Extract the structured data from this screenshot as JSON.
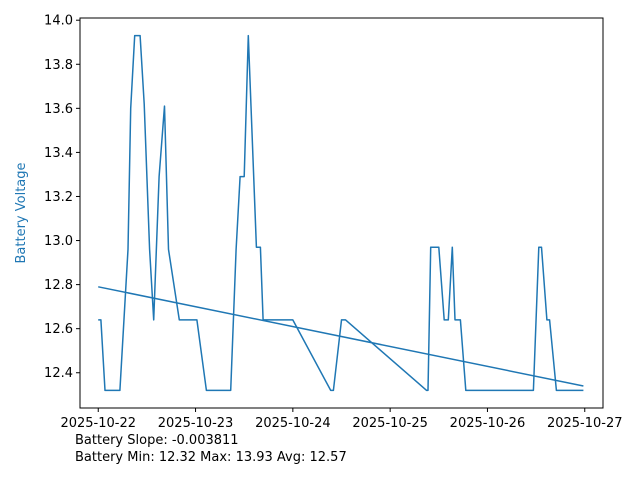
{
  "chart_data": {
    "type": "line",
    "title": "",
    "xlabel": "",
    "ylabel": "Battery Voltage",
    "xlim": [
      "2025-10-21 19:30",
      "2025-10-27 04:30"
    ],
    "ylim": [
      12.24,
      14.01
    ],
    "x_ticks": [
      "2025-10-22",
      "2025-10-23",
      "2025-10-24",
      "2025-10-25",
      "2025-10-26",
      "2025-10-27"
    ],
    "y_ticks": [
      "12.4",
      "12.6",
      "12.8",
      "13.0",
      "13.2",
      "13.4",
      "13.6",
      "13.8",
      "14.0"
    ],
    "grid": false,
    "line_color": "#1f77b4",
    "series": [
      {
        "x": [
          "2025-10-22 00:00",
          "2025-10-22 00:40",
          "2025-10-22 01:40",
          "2025-10-22 02:40",
          "2025-10-22 03:40",
          "2025-10-22 05:20",
          "2025-10-22 07:20",
          "2025-10-22 08:00",
          "2025-10-22 09:00",
          "2025-10-22 10:20",
          "2025-10-22 11:20",
          "2025-10-22 12:40",
          "2025-10-22 13:40",
          "2025-10-22 15:00",
          "2025-10-22 16:20",
          "2025-10-22 17:20",
          "2025-10-22 20:00",
          "2025-10-22 22:40",
          "2025-10-22 23:40",
          "2025-10-23 00:20",
          "2025-10-23 02:40",
          "2025-10-23 05:20",
          "2025-10-23 06:40",
          "2025-10-23 08:40",
          "2025-10-23 10:00",
          "2025-10-23 11:00",
          "2025-10-23 12:00",
          "2025-10-23 13:00",
          "2025-10-23 13:40",
          "2025-10-23 15:00",
          "2025-10-23 16:00",
          "2025-10-23 16:40",
          "2025-10-23 21:20",
          "2025-10-23 23:40",
          "2025-10-24 00:00",
          "2025-10-24 09:20",
          "2025-10-24 10:00",
          "2025-10-24 12:00",
          "2025-10-24 13:00",
          "2025-10-25 09:00",
          "2025-10-25 09:20",
          "2025-10-25 10:00",
          "2025-10-25 12:00",
          "2025-10-25 13:20",
          "2025-10-25 14:20",
          "2025-10-25 15:20",
          "2025-10-25 16:00",
          "2025-10-25 17:20",
          "2025-10-25 18:40",
          "2025-10-26 09:40",
          "2025-10-26 11:20",
          "2025-10-26 12:40",
          "2025-10-26 13:20",
          "2025-10-26 14:40",
          "2025-10-26 15:20",
          "2025-10-26 17:00",
          "2025-10-26 23:40"
        ],
        "values": [
          12.64,
          12.64,
          12.32,
          12.32,
          12.32,
          12.32,
          12.96,
          13.6,
          13.93,
          13.93,
          13.62,
          12.96,
          12.64,
          13.29,
          13.61,
          12.96,
          12.64,
          12.64,
          12.64,
          12.64,
          12.32,
          12.32,
          12.32,
          12.32,
          12.96,
          13.29,
          13.29,
          13.93,
          13.61,
          12.97,
          12.97,
          12.64,
          12.64,
          12.64,
          12.64,
          12.32,
          12.32,
          12.64,
          12.64,
          12.32,
          12.32,
          12.97,
          12.97,
          12.64,
          12.64,
          12.97,
          12.64,
          12.64,
          12.32,
          12.32,
          12.32,
          12.97,
          12.97,
          12.64,
          12.64,
          12.32,
          12.32
        ]
      },
      {
        "x": [
          "2025-10-22 00:00",
          "2025-10-26 23:40"
        ],
        "values": [
          12.79,
          12.34
        ]
      }
    ],
    "annotations": [
      "Battery Slope: -0.003811",
      "Battery Min: 12.32 Max: 13.93 Avg: 12.57"
    ]
  }
}
